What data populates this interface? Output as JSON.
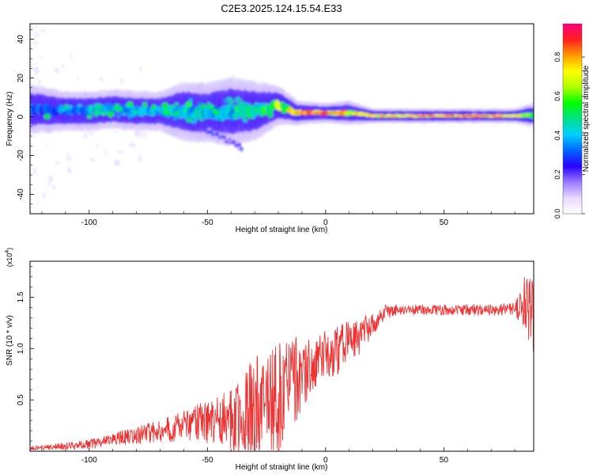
{
  "figure": {
    "title": "C2E3.2025.124.15.54.E33"
  },
  "chart_data": [
    {
      "type": "heatmap",
      "xlabel": "Height of straight line (km)",
      "ylabel": "Frequency (Hz)",
      "xlim": [
        -125,
        88
      ],
      "ylim": [
        -50,
        48
      ],
      "xticks": [
        -100,
        -50,
        0,
        50
      ],
      "yticks": [
        -40,
        -20,
        0,
        20,
        40
      ],
      "colorbar": {
        "label": "Normalized spectral amplitude",
        "range": [
          0,
          0.97
        ],
        "ticks": [
          "0.0",
          "0.2",
          "0.4",
          "0.6",
          "0.8"
        ],
        "colormap": [
          "#ffffff",
          "#e8d8ff",
          "#9a7aff",
          "#2a00ff",
          "#0066ff",
          "#00d0ff",
          "#00e08a",
          "#00ff00",
          "#b0ff00",
          "#ffff00",
          "#ff9900",
          "#ff2020",
          "#ff0080"
        ]
      },
      "band": {
        "x": [
          -125,
          -110,
          -100,
          -90,
          -80,
          -70,
          -60,
          -50,
          -40,
          -30,
          -20,
          -12,
          0,
          10,
          20,
          40,
          60,
          80,
          88
        ],
        "center_freq": [
          4,
          3,
          3,
          4,
          3,
          3,
          3,
          2,
          3,
          3,
          6,
          2,
          2,
          2,
          0.5,
          0.5,
          0.5,
          0.5,
          1
        ],
        "half_width": [
          5,
          4,
          4,
          4,
          4,
          4,
          6,
          6,
          7,
          6,
          4,
          2.5,
          2,
          2.5,
          1.5,
          1.5,
          1.5,
          1.5,
          2.5
        ],
        "peak_amplitude": [
          0.35,
          0.35,
          0.4,
          0.45,
          0.45,
          0.45,
          0.5,
          0.45,
          0.5,
          0.55,
          0.7,
          0.9,
          0.95,
          0.85,
          0.8,
          0.9,
          0.9,
          0.85,
          0.6
        ]
      },
      "tail": {
        "x": [
          -50,
          -45,
          -40,
          -35
        ],
        "center_freq": [
          -8,
          -10,
          -13,
          -16
        ],
        "peak_amplitude": 0.3
      }
    },
    {
      "type": "line",
      "xlabel": "Height of straight line (km)",
      "ylabel": "SNR (10 * v/v)",
      "y_multiplier": "(x10^4)",
      "y_multiplier_base": "(x10",
      "y_multiplier_exp": "4",
      "y_multiplier_close": ")",
      "xlim": [
        -125,
        88
      ],
      "ylim": [
        0,
        1.85
      ],
      "xticks": [
        -100,
        -50,
        0,
        50
      ],
      "yticks": [
        0.5,
        1.0,
        1.5
      ],
      "ytick_labels": [
        "0.5",
        "1.0",
        "1.5"
      ],
      "series": [
        {
          "color": "#ee3333",
          "envelope_x": [
            -125,
            -110,
            -100,
            -90,
            -80,
            -70,
            -60,
            -50,
            -40,
            -35,
            -30,
            -25,
            -20,
            -15,
            -10,
            -5,
            0,
            5,
            10,
            15,
            20,
            25,
            30,
            35,
            40,
            50,
            60,
            70,
            80,
            84,
            86,
            88
          ],
          "envelope_y": [
            0.03,
            0.05,
            0.07,
            0.12,
            0.16,
            0.2,
            0.26,
            0.3,
            0.33,
            0.35,
            0.4,
            0.45,
            0.55,
            0.65,
            0.75,
            0.85,
            0.95,
            1.0,
            1.06,
            1.15,
            1.25,
            1.35,
            1.38,
            1.38,
            1.38,
            1.38,
            1.38,
            1.38,
            1.39,
            1.42,
            1.4,
            1.2
          ],
          "spike_amplitude_x": [
            -125,
            -90,
            -60,
            -40,
            -30,
            -25,
            -20,
            -12,
            -5,
            10,
            20,
            30,
            80,
            84,
            88
          ],
          "spike_amplitude_y": [
            0.02,
            0.06,
            0.15,
            0.3,
            0.6,
            0.5,
            0.6,
            0.45,
            0.25,
            0.25,
            0.12,
            0.05,
            0.06,
            0.3,
            0.5
          ]
        }
      ]
    }
  ]
}
